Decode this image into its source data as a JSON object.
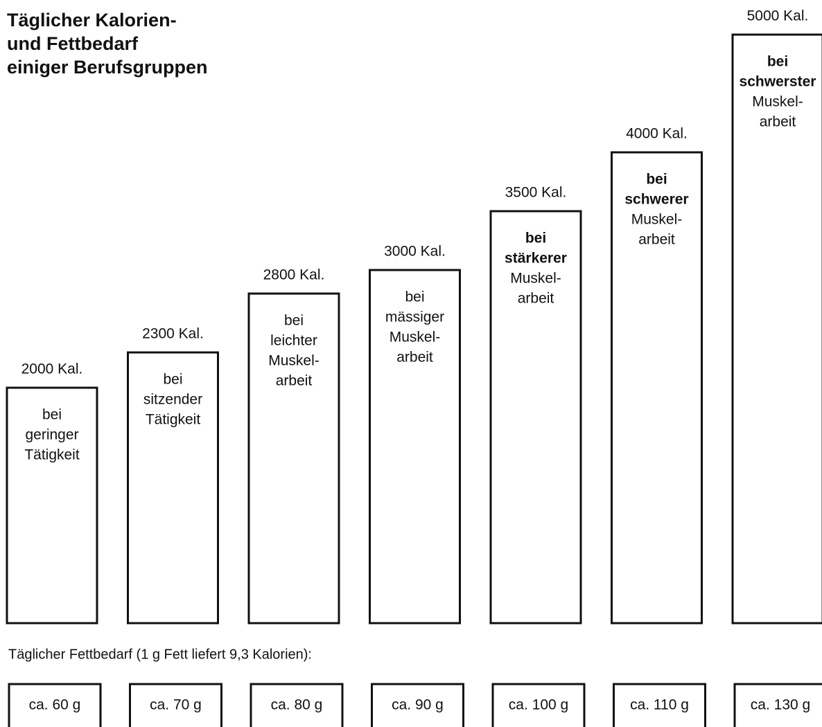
{
  "chart_data": {
    "type": "bar",
    "title": [
      "Täglicher Kalorien-",
      "und Fettbedarf",
      "einiger Berufsgruppen"
    ],
    "categories": [
      [
        "bei",
        "geringer",
        "Tätigkeit"
      ],
      [
        "bei",
        "sitzender",
        "Tätigkeit"
      ],
      [
        "bei",
        "leichter",
        "Muskel-",
        "arbeit"
      ],
      [
        "bei",
        "mässiger",
        "Muskel-",
        "arbeit"
      ],
      [
        "bei",
        "stärkerer",
        "Muskel-",
        "arbeit"
      ],
      [
        "bei",
        "schwerer",
        "Muskel-",
        "arbeit"
      ],
      [
        "bei",
        "schwerster",
        "Muskel-",
        "arbeit"
      ]
    ],
    "values": [
      2000,
      2300,
      2800,
      3000,
      3500,
      4000,
      5000
    ],
    "value_labels": [
      "2000 Kal.",
      "2300 Kal.",
      "2800 Kal.",
      "3000 Kal.",
      "3500 Kal.",
      "4000 Kal.",
      "5000 Kal."
    ],
    "color": "#ffffff"
  },
  "fat_table": {
    "title": "Täglicher Fettbedarf (1 g Fett liefert 9,3 Kalorien):",
    "cells": [
      "ca. 60 g",
      "ca. 70 g",
      "ca. 80 g",
      "ca. 90 g",
      "ca. 100 g",
      "ca. 110 g",
      "ca. 130 g"
    ]
  }
}
